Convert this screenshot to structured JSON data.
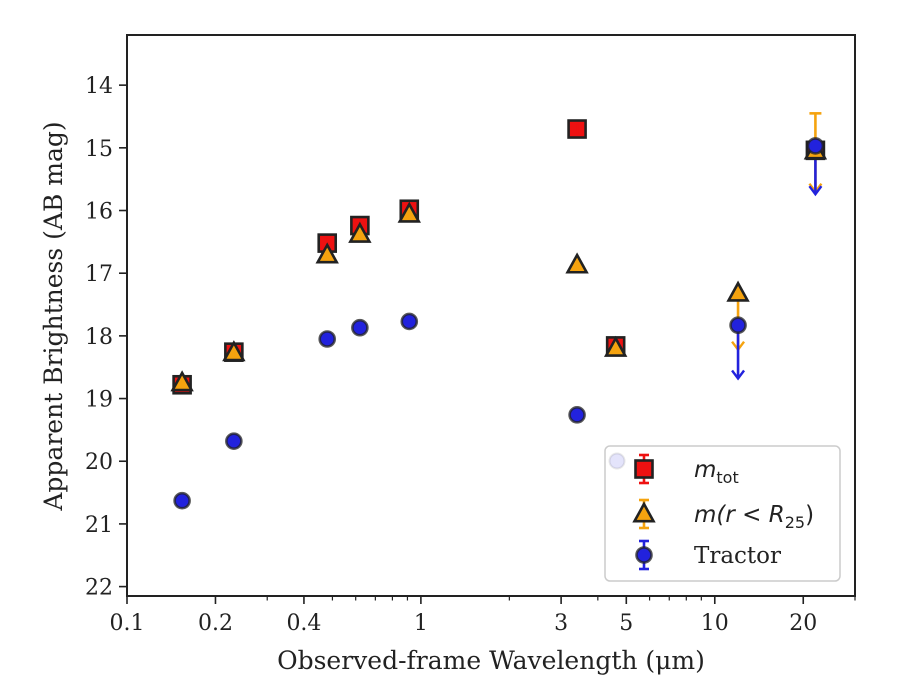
{
  "chart_data": {
    "type": "scatter",
    "title": "",
    "xlabel": "Observed-frame Wavelength (μm)",
    "ylabel": "Apparent Brightness (AB mag)",
    "xscale": "log",
    "xlim": [
      0.1,
      30
    ],
    "ylim": [
      22.15,
      13.2
    ],
    "y_inverted": true,
    "x_tick_labels": [
      "0.1",
      "0.2",
      "0.4",
      "1",
      "3",
      "5",
      "10",
      "20"
    ],
    "y_tick_labels": [
      "14",
      "15",
      "16",
      "17",
      "18",
      "19",
      "20",
      "21",
      "22"
    ],
    "grid": false,
    "legend_position": "lower-right",
    "colors": {
      "m_tot": "#ee1111",
      "m_r25": "#f5a30f",
      "tractor": "#2222dd",
      "edge": "#222222"
    },
    "series": [
      {
        "name": "m_tot",
        "label_html": "m<sub>tot</sub>",
        "marker": "square",
        "points": [
          {
            "x": 0.154,
            "y": 18.78
          },
          {
            "x": 0.231,
            "y": 18.26
          },
          {
            "x": 0.48,
            "y": 16.52
          },
          {
            "x": 0.62,
            "y": 16.24
          },
          {
            "x": 0.913,
            "y": 15.98
          },
          {
            "x": 3.4,
            "y": 14.7
          },
          {
            "x": 4.6,
            "y": 18.16
          },
          {
            "x": 22.0,
            "y": 15.04
          }
        ]
      },
      {
        "name": "m(r<R25)",
        "marker": "triangle",
        "points": [
          {
            "x": 0.154,
            "y": 18.75
          },
          {
            "x": 0.231,
            "y": 18.27
          },
          {
            "x": 0.48,
            "y": 16.71
          },
          {
            "x": 0.62,
            "y": 16.38
          },
          {
            "x": 0.913,
            "y": 16.06
          },
          {
            "x": 3.4,
            "y": 16.87
          },
          {
            "x": 4.6,
            "y": 18.2
          },
          {
            "x": 12.0,
            "y": 17.32,
            "err_lo": 0.0,
            "err_hi": 0.9,
            "upper_limit": true
          },
          {
            "x": 22.0,
            "y": 15.05,
            "err_lo": 0.6,
            "err_hi": 0.65,
            "upper_limit": true
          }
        ]
      },
      {
        "name": "Tractor",
        "marker": "circle",
        "points": [
          {
            "x": 0.154,
            "y": 20.63
          },
          {
            "x": 0.231,
            "y": 19.68
          },
          {
            "x": 0.48,
            "y": 18.05
          },
          {
            "x": 0.62,
            "y": 17.87
          },
          {
            "x": 0.913,
            "y": 17.77
          },
          {
            "x": 3.4,
            "y": 19.26
          },
          {
            "x": 12.0,
            "y": 17.83,
            "err_lo": 0.0,
            "err_hi": 0.85,
            "upper_limit": true
          },
          {
            "x": 22.0,
            "y": 14.97,
            "err_lo": 0.0,
            "err_hi": 0.77,
            "upper_limit": true
          }
        ]
      }
    ],
    "legend": [
      {
        "series": "m_tot",
        "text_main": "m",
        "text_sub": "tot"
      },
      {
        "series": "m(r<R25)",
        "text_main": "m(r < R",
        "text_sub": "25",
        "text_tail": ")"
      },
      {
        "series": "Tractor",
        "text_main": "Tractor"
      }
    ]
  }
}
